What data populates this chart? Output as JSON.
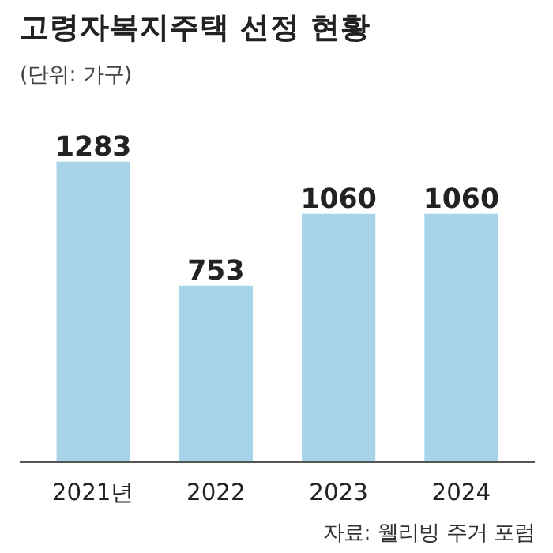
{
  "chart_data": {
    "type": "bar",
    "title": "고령자복지주택 선정 현황",
    "subtitle": "(단위: 가구)",
    "categories": [
      "2021년",
      "2022",
      "2023",
      "2024"
    ],
    "values": [
      1283,
      753,
      1060,
      1060
    ],
    "color": "#a8d4ea",
    "data_labels": true,
    "annotations": [
      "자료: 웰리빙 주거 포럼"
    ]
  }
}
